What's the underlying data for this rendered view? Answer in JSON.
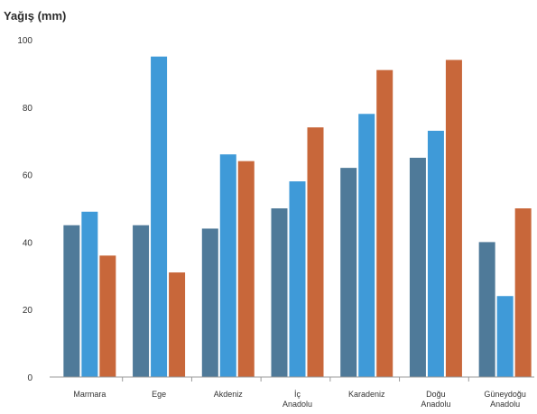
{
  "chart_data": {
    "type": "bar",
    "ylabel": "Yağış (mm)",
    "xlabel": "",
    "ylim": [
      0,
      100
    ],
    "yticks": [
      0,
      20,
      40,
      60,
      80,
      100
    ],
    "grid": false,
    "legend": "none",
    "categories": [
      [
        "Marmara"
      ],
      [
        "Ege"
      ],
      [
        "Akdeniz"
      ],
      [
        "İç",
        "Anadolu"
      ],
      [
        "Karadeniz"
      ],
      [
        "Doğu",
        "Anadolu"
      ],
      [
        "Güneydoğu",
        "Anadolu"
      ]
    ],
    "series": [
      {
        "color": "#4f7a99",
        "values": [
          45,
          45,
          44,
          50,
          62,
          65,
          40
        ]
      },
      {
        "color": "#3f9ad8",
        "values": [
          49,
          95,
          66,
          58,
          78,
          73,
          24
        ]
      },
      {
        "color": "#c8673a",
        "values": [
          36,
          31,
          64,
          74,
          91,
          94,
          50
        ]
      }
    ]
  }
}
